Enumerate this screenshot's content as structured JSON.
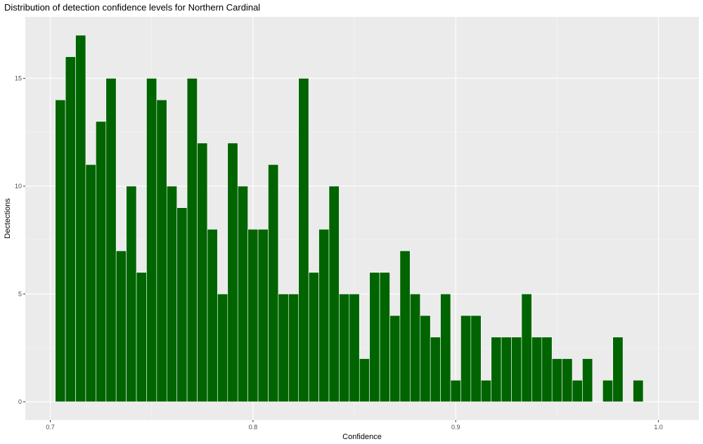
{
  "chart_data": {
    "type": "bar",
    "title": "Distribution of detection confidence levels for Northern Cardinal",
    "xlabel": "Confidence",
    "ylabel": "Dectections",
    "xlim": [
      0.6877,
      1.0199
    ],
    "ylim": [
      -0.85,
      17.85
    ],
    "x_ticks": [
      0.7,
      0.8,
      0.9,
      1.0
    ],
    "x_tick_labels": [
      "0.7",
      "0.8",
      "0.9",
      "1.0"
    ],
    "y_ticks": [
      0,
      5,
      10,
      15
    ],
    "y_tick_labels": [
      "0",
      "5",
      "10",
      "15"
    ],
    "grid": true,
    "bar_color": "#006400",
    "bar_outline": "#ffffff",
    "panel_background": "#ebebeb",
    "bin_width": 0.005,
    "bins": [
      {
        "x": 0.705,
        "count": 14
      },
      {
        "x": 0.71,
        "count": 16
      },
      {
        "x": 0.715,
        "count": 17
      },
      {
        "x": 0.72,
        "count": 11
      },
      {
        "x": 0.725,
        "count": 13
      },
      {
        "x": 0.73,
        "count": 15
      },
      {
        "x": 0.735,
        "count": 7
      },
      {
        "x": 0.74,
        "count": 10
      },
      {
        "x": 0.745,
        "count": 6
      },
      {
        "x": 0.75,
        "count": 15
      },
      {
        "x": 0.755,
        "count": 14
      },
      {
        "x": 0.76,
        "count": 10
      },
      {
        "x": 0.765,
        "count": 9
      },
      {
        "x": 0.77,
        "count": 15
      },
      {
        "x": 0.775,
        "count": 12
      },
      {
        "x": 0.78,
        "count": 8
      },
      {
        "x": 0.785,
        "count": 5
      },
      {
        "x": 0.79,
        "count": 12
      },
      {
        "x": 0.795,
        "count": 10
      },
      {
        "x": 0.8,
        "count": 8
      },
      {
        "x": 0.805,
        "count": 8
      },
      {
        "x": 0.81,
        "count": 11
      },
      {
        "x": 0.815,
        "count": 5
      },
      {
        "x": 0.82,
        "count": 5
      },
      {
        "x": 0.825,
        "count": 15
      },
      {
        "x": 0.83,
        "count": 6
      },
      {
        "x": 0.835,
        "count": 8
      },
      {
        "x": 0.84,
        "count": 10
      },
      {
        "x": 0.845,
        "count": 5
      },
      {
        "x": 0.85,
        "count": 5
      },
      {
        "x": 0.855,
        "count": 2
      },
      {
        "x": 0.86,
        "count": 6
      },
      {
        "x": 0.865,
        "count": 6
      },
      {
        "x": 0.87,
        "count": 4
      },
      {
        "x": 0.875,
        "count": 7
      },
      {
        "x": 0.88,
        "count": 5
      },
      {
        "x": 0.885,
        "count": 4
      },
      {
        "x": 0.89,
        "count": 3
      },
      {
        "x": 0.895,
        "count": 5
      },
      {
        "x": 0.9,
        "count": 1
      },
      {
        "x": 0.905,
        "count": 4
      },
      {
        "x": 0.91,
        "count": 4
      },
      {
        "x": 0.915,
        "count": 1
      },
      {
        "x": 0.92,
        "count": 3
      },
      {
        "x": 0.925,
        "count": 3
      },
      {
        "x": 0.93,
        "count": 3
      },
      {
        "x": 0.935,
        "count": 5
      },
      {
        "x": 0.94,
        "count": 3
      },
      {
        "x": 0.945,
        "count": 3
      },
      {
        "x": 0.95,
        "count": 2
      },
      {
        "x": 0.955,
        "count": 2
      },
      {
        "x": 0.96,
        "count": 1
      },
      {
        "x": 0.965,
        "count": 2
      },
      {
        "x": 0.975,
        "count": 1
      },
      {
        "x": 0.98,
        "count": 3
      },
      {
        "x": 0.99,
        "count": 1
      }
    ]
  }
}
